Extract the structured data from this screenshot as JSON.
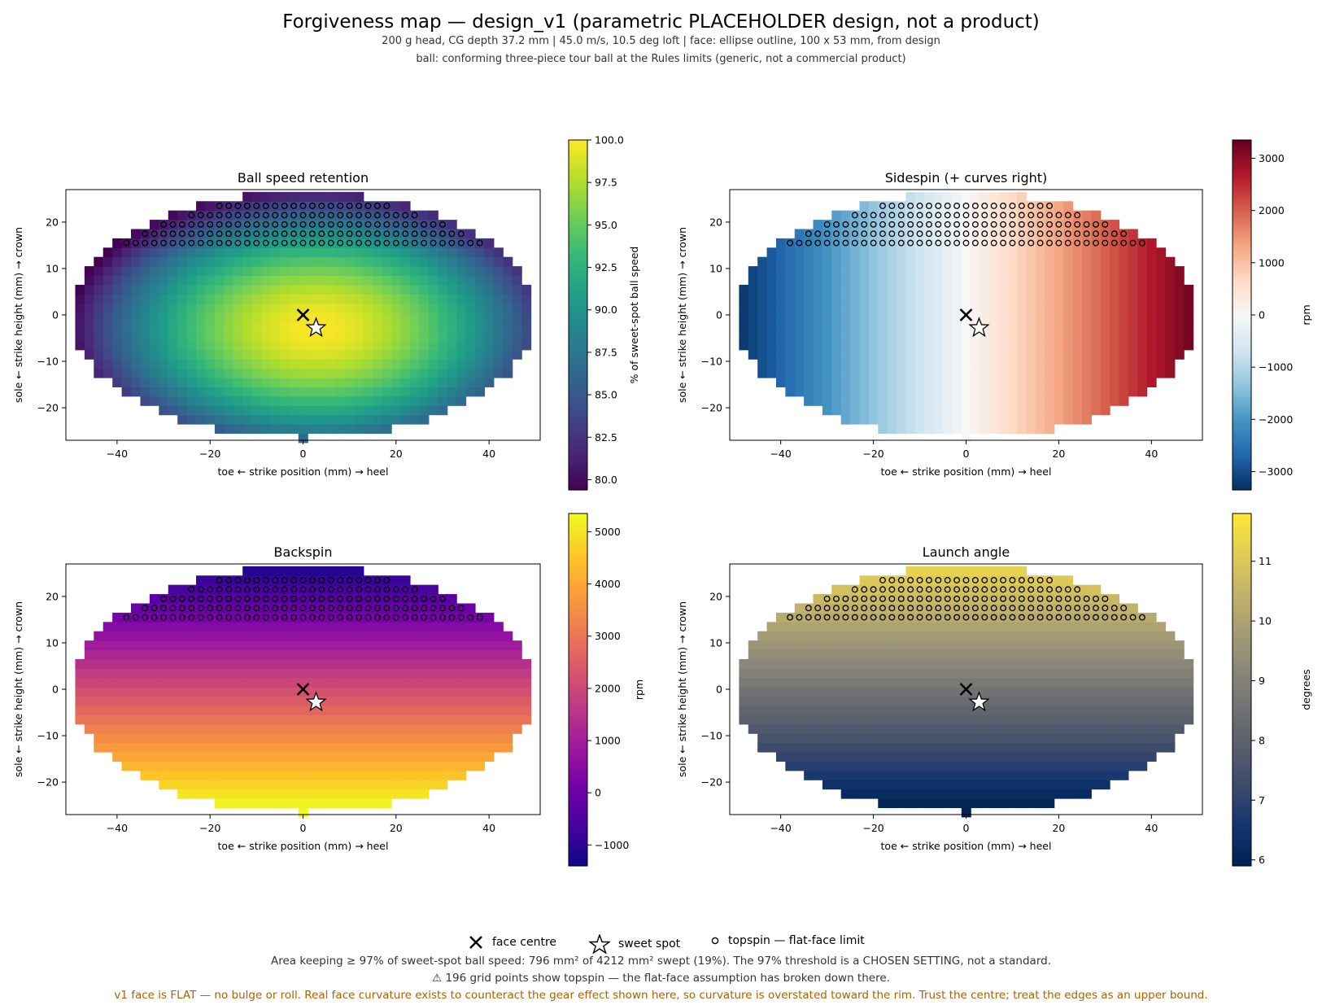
{
  "header": {
    "title": "Forgiveness map — design_v1 (parametric PLACEHOLDER design, not a product)",
    "subtitle_line1": "200 g head, CG depth 37.2 mm   |   45.0 m/s, 10.5 deg loft   |   face: ellipse outline, 100 x 53 mm, from design",
    "subtitle_line2": "ball: conforming three-piece tour ball at the Rules limits (generic, not a commercial product)"
  },
  "legend": {
    "face_centre": "face centre",
    "sweet_spot": "sweet spot",
    "topspin": "topspin — flat-face limit"
  },
  "footer": {
    "line1": "Area keeping ≥ 97% of sweet-spot ball speed: 796 mm² of 4212 mm² swept (19%).  The 97% threshold is a CHOSEN SETTING, not a standard.",
    "line2": "⚠ 196 grid points show topspin — the flat-face assumption has broken down there.",
    "line3": "v1 face is FLAT — no bulge or roll. Real face curvature exists to counteract the gear effect shown here, so curvature is overstated toward the rim. Trust the centre; treat the edges as an upper bound.",
    "line3_color": "#b06000"
  },
  "chart_data": [
    {
      "type": "heatmap",
      "title": "Ball speed retention",
      "xlabel": "toe  ←   strike position (mm)   →  heel",
      "ylabel": "sole  ←   strike height (mm)   →  crown",
      "xlim": [
        -51,
        51
      ],
      "ylim": [
        -27,
        27
      ],
      "xticks": [
        -40,
        -20,
        0,
        20,
        40
      ],
      "yticks": [
        -20,
        -10,
        0,
        10,
        20
      ],
      "face_ellipse_mm": [
        100,
        53
      ],
      "grid_step_mm": 2,
      "colormap": "viridis",
      "colorbar_label": "% of sweet-spot ball speed",
      "colorbar_range": [
        79.4,
        100.0
      ],
      "colorbar_ticks": [
        "80.0",
        "82.5",
        "85.0",
        "87.5",
        "90.0",
        "92.5",
        "95.0",
        "97.5",
        "100.0"
      ],
      "field": "speed",
      "sweet_spot": [
        2.8,
        -2.8
      ],
      "face_centre": [
        0,
        0
      ],
      "topspin_above_y": 14,
      "topspin_points": 196
    },
    {
      "type": "heatmap",
      "title": "Sidespin  (+ curves right)",
      "xlabel": "toe  ←   strike position (mm)   →  heel",
      "ylabel": "sole  ←   strike height (mm)   →  crown",
      "xlim": [
        -51,
        51
      ],
      "ylim": [
        -27,
        27
      ],
      "xticks": [
        -40,
        -20,
        0,
        20,
        40
      ],
      "yticks": [
        -20,
        -10,
        0,
        10,
        20
      ],
      "face_ellipse_mm": [
        100,
        53
      ],
      "grid_step_mm": 2,
      "colormap": "RdBu_r",
      "colorbar_label": "rpm",
      "colorbar_range": [
        -3350,
        3350
      ],
      "colorbar_ticks": [
        "−3000",
        "−2000",
        "−1000",
        "0",
        "1000",
        "2000",
        "3000"
      ],
      "field": "sidespin",
      "sweet_spot": [
        2.8,
        -2.8
      ],
      "face_centre": [
        0,
        0
      ],
      "topspin_above_y": 14,
      "topspin_points": 196
    },
    {
      "type": "heatmap",
      "title": "Backspin",
      "xlabel": "toe  ←   strike position (mm)   →  heel",
      "ylabel": "sole  ←   strike height (mm)   →  crown",
      "xlim": [
        -51,
        51
      ],
      "ylim": [
        -27,
        27
      ],
      "xticks": [
        -40,
        -20,
        0,
        20,
        40
      ],
      "yticks": [
        -20,
        -10,
        0,
        10,
        20
      ],
      "face_ellipse_mm": [
        100,
        53
      ],
      "grid_step_mm": 2,
      "colormap": "plasma",
      "colorbar_label": "rpm",
      "colorbar_range": [
        -1400,
        5350
      ],
      "colorbar_ticks": [
        "−1000",
        "0",
        "1000",
        "2000",
        "3000",
        "4000",
        "5000"
      ],
      "field": "backspin",
      "sweet_spot": [
        2.8,
        -2.8
      ],
      "face_centre": [
        0,
        0
      ],
      "topspin_above_y": 14,
      "topspin_points": 196
    },
    {
      "type": "heatmap",
      "title": "Launch angle",
      "xlabel": "toe  ←   strike position (mm)   →  heel",
      "ylabel": "sole  ←   strike height (mm)   →  crown",
      "xlim": [
        -51,
        51
      ],
      "ylim": [
        -27,
        27
      ],
      "xticks": [
        -40,
        -20,
        0,
        20,
        40
      ],
      "yticks": [
        -20,
        -10,
        0,
        10,
        20
      ],
      "face_ellipse_mm": [
        100,
        53
      ],
      "grid_step_mm": 2,
      "colormap": "cividis",
      "colorbar_label": "degrees",
      "colorbar_range": [
        5.9,
        11.8
      ],
      "colorbar_ticks": [
        "6",
        "7",
        "8",
        "9",
        "10",
        "11"
      ],
      "field": "launch",
      "sweet_spot": [
        2.8,
        -2.8
      ],
      "face_centre": [
        0,
        0
      ],
      "topspin_above_y": 14,
      "topspin_points": 196
    }
  ]
}
